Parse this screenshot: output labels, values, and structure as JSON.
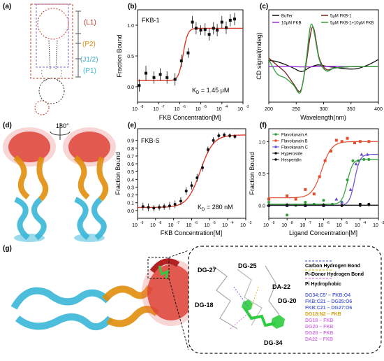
{
  "panels": {
    "a": {
      "letter": "(a)",
      "labels": [
        "(L1)",
        "(P2)",
        "(J1/2)",
        "(P1)"
      ],
      "colors": [
        "#c0392b",
        "#e08e0b",
        "#3aa7c7",
        "#3ab7d8"
      ]
    },
    "b": {
      "letter": "(b)",
      "title": "FKB-1",
      "kd": "K",
      "kd_sub": "D",
      "kd_val": " = 1.45 μM",
      "xlabel": "FKB Concentration[M]",
      "ylabel": "Fraction Bound",
      "xticks": [
        "10",
        "10",
        "10",
        "10",
        "10",
        "10"
      ],
      "xexp": [
        "-8",
        "-7",
        "-6",
        "-5",
        "-4",
        "-3"
      ],
      "yticks": [
        "0.0",
        "0.5",
        "1.0"
      ]
    },
    "c": {
      "letter": "(c)",
      "xlabel": "Wavelength(nm)",
      "ylabel": "CD signal(mdeg)",
      "xticks": [
        "200",
        "250",
        "300",
        "350",
        "400"
      ],
      "legend": [
        "Buffer",
        "10μM FKB",
        "5μM FKB-1",
        "5μM FKB-1+10μM FKB"
      ]
    },
    "d": {
      "letter": "(d)",
      "rotation": "180°"
    },
    "e": {
      "letter": "(e)",
      "title": "FKB-S",
      "kd": "K",
      "kd_sub": "D",
      "kd_val": " = 280 nM",
      "xlabel": "FKB Concentration[M]",
      "ylabel": "Fraction Bound",
      "xticks": [
        "10",
        "10",
        "10",
        "10",
        "10",
        "10",
        "10"
      ],
      "xexp": [
        "-9",
        "-8",
        "-7",
        "-6",
        "-5",
        "-4",
        "-3"
      ],
      "yticks": [
        "0.0",
        "0.1",
        "0.2",
        "0.3",
        "0.4",
        "0.5",
        "0.6",
        "0.7",
        "0.8",
        "0.9"
      ]
    },
    "f": {
      "letter": "(f)",
      "xlabel": "Ligand Concentration[M]",
      "ylabel": "Fraction Bound",
      "xticks": [
        "10",
        "10",
        "10",
        "10",
        "10",
        "10",
        "10"
      ],
      "xexp": [
        "-9",
        "-8",
        "-7",
        "-6",
        "-5",
        "-4",
        "-3"
      ],
      "yticks": [
        "0.0",
        "0.5",
        "1.0"
      ],
      "legend": [
        "Flavokavain A",
        "Flavokavain B",
        "Flavokavain C",
        "Hyperoside",
        "Hesperidin"
      ]
    },
    "g": {
      "letter": "(g)",
      "residues": [
        "DG-27",
        "DG-25",
        "DA-22",
        "DG-18",
        "DG-20",
        "DG-34"
      ],
      "legend": [
        "Carbon Hydrogen Bond",
        "Pi-Donor Hydrogen Bond",
        "Pi Hydrophobic"
      ],
      "interactions": [
        "DG34:C5' – FKB:O4",
        "FKB:C21 – DG25:O6",
        "FKB:C21 – DG27:O6",
        "DG18:N2 – FKB",
        "DG18 – FKB",
        "DG20 – FKB",
        "DG28 – FKB",
        "DA22 – FKB"
      ]
    }
  },
  "chart_data": [
    {
      "panel": "b",
      "type": "scatter",
      "title": "FKB-1",
      "xlabel": "FKB Concentration[M]",
      "ylabel": "Fraction Bound",
      "xscale": "log",
      "xlim": [
        1e-08,
        0.001
      ],
      "ylim": [
        -0.25,
        1.25
      ],
      "kd": "1.45 μM",
      "series": [
        {
          "x": [
            1.2e-08,
            2.5e-08,
            6e-08,
            1.2e-07,
            2.5e-07,
            6e-07,
            1.2e-06,
            2.5e-06,
            4e-06,
            6e-06,
            1e-05,
            1.6e-05,
            2.5e-05,
            4e-05,
            6e-05,
            0.0001,
            0.00016,
            0.00025,
            0.0004
          ],
          "y": [
            0.02,
            0.22,
            0.15,
            0.2,
            0.15,
            0.12,
            0.42,
            0.55,
            1.05,
            0.95,
            0.92,
            0.93,
            0.85,
            0.95,
            0.92,
            1.05,
            0.96,
            1.08,
            1.1
          ],
          "err": [
            0.1,
            0.12,
            0.1,
            0.1,
            0.1,
            0.1,
            0.1,
            0.08,
            0.1,
            0.1,
            0.08,
            0.1,
            0.1,
            0.1,
            0.1,
            0.1,
            0.1,
            0.1,
            0.1
          ]
        }
      ]
    },
    {
      "panel": "c",
      "type": "line",
      "xlabel": "Wavelength(nm)",
      "ylabel": "CD signal(mdeg)",
      "xlim": [
        200,
        400
      ],
      "series": [
        {
          "name": "Buffer",
          "color": "#111111",
          "x": [
            200,
            215,
            230,
            245,
            260,
            275,
            290,
            305,
            320,
            340,
            360,
            380,
            400
          ],
          "y": [
            0.45,
            0.35,
            0.15,
            -0.1,
            -0.35,
            -0.05,
            0.12,
            0.02,
            -0.05,
            -0.15,
            -0.15,
            0.1,
            0.5
          ]
        },
        {
          "name": "10μM FKB",
          "color": "#9b30d9",
          "x": [
            200,
            230,
            260,
            290,
            320,
            350,
            380,
            400
          ],
          "y": [
            0.0,
            0.02,
            -0.02,
            0.0,
            0.02,
            0.0,
            0.0,
            0.0
          ]
        },
        {
          "name": "5μM FKB-1",
          "color": "#7b1f1f",
          "x": [
            200,
            215,
            230,
            245,
            258,
            268,
            280,
            292,
            305,
            320,
            350,
            380,
            400
          ],
          "y": [
            0.6,
            0.1,
            -0.4,
            -1.2,
            -1.7,
            0.2,
            2.8,
            0.6,
            -0.2,
            -0.1,
            0.0,
            0.0,
            0.0
          ]
        },
        {
          "name": "5μM FKB-1+10μM FKB",
          "color": "#2e9e38",
          "x": [
            200,
            215,
            230,
            245,
            258,
            268,
            278,
            292,
            305,
            320,
            350,
            380,
            400
          ],
          "y": [
            0.5,
            -0.5,
            -0.8,
            -1.3,
            -1.8,
            0.4,
            3.0,
            0.5,
            -0.3,
            -0.1,
            0.0,
            0.0,
            0.0
          ]
        }
      ]
    },
    {
      "panel": "e",
      "type": "scatter",
      "title": "FKB-S",
      "xlabel": "FKB Concentration[M]",
      "ylabel": "Fraction Bound",
      "xscale": "log",
      "xlim": [
        1e-09,
        0.001
      ],
      "ylim": [
        -0.1,
        1.05
      ],
      "kd": "280 nM",
      "series": [
        {
          "x": [
            2e-09,
            4e-09,
            8e-09,
            1.6e-08,
            3e-08,
            6e-08,
            1.2e-07,
            2.5e-07,
            5e-07,
            1e-06,
            2e-06,
            4e-06,
            8e-06,
            1.6e-05,
            3.2e-05,
            6.4e-05,
            0.00013,
            0.00025
          ],
          "y": [
            0.05,
            0.04,
            0.03,
            0.04,
            0.05,
            0.06,
            0.08,
            0.12,
            0.25,
            0.32,
            0.42,
            0.55,
            0.78,
            0.9,
            0.96,
            0.97,
            0.96,
            0.95
          ],
          "err": [
            0.05,
            0.05,
            0.04,
            0.04,
            0.04,
            0.05,
            0.05,
            0.05,
            0.05,
            0.05,
            0.05,
            0.05,
            0.04,
            0.04,
            0.04,
            0.03,
            0.03,
            0.03
          ]
        }
      ]
    },
    {
      "panel": "f",
      "type": "scatter",
      "xlabel": "Ligand Concentration[M]",
      "ylabel": "Fraction Bound",
      "xscale": "log",
      "xlim": [
        1e-09,
        0.001
      ],
      "ylim": [
        -0.2,
        1.2
      ],
      "series": [
        {
          "name": "Flavokavain A",
          "color": "#2e9e38",
          "marker": "circle",
          "x": [
            1e-09,
            1e-08,
            3e-08,
            1e-07,
            3e-07,
            1e-06,
            3e-06,
            1e-05,
            2e-05,
            4e-05,
            8e-05,
            0.00016,
            0.0003
          ],
          "y": [
            0.05,
            -0.15,
            0.0,
            0.05,
            0.02,
            0.08,
            0.02,
            0.05,
            0.4,
            0.7,
            0.7,
            0.72,
            0.72
          ]
        },
        {
          "name": "Flavokavain B",
          "color": "#e05030",
          "marker": "square",
          "x": [
            1e-09,
            1e-08,
            3e-08,
            1e-07,
            3e-07,
            6e-07,
            1.2e-06,
            2.5e-06,
            5e-06,
            1e-05,
            2e-05,
            5e-05,
            0.0001,
            0.0003
          ],
          "y": [
            0.1,
            0.15,
            0.1,
            0.25,
            0.18,
            0.45,
            0.7,
            0.85,
            1.02,
            1.0,
            1.05,
            0.98,
            1.0,
            1.0
          ]
        },
        {
          "name": "Flavokavain C",
          "color": "#6a4ccf",
          "marker": "triangle",
          "x": [
            1e-09,
            1e-08,
            1e-07,
            1e-06,
            5e-06,
            1e-05,
            3e-05,
            6e-05,
            0.00012,
            0.00025
          ],
          "y": [
            0.0,
            0.0,
            0.0,
            0.0,
            0.1,
            0.05,
            0.25,
            0.65,
            0.8,
            0.8
          ]
        },
        {
          "name": "Hyperoside",
          "color": "#111111",
          "marker": "circle",
          "x": [
            1e-09,
            1e-08,
            1e-07,
            1e-06,
            1e-05,
            0.0001,
            0.0003
          ],
          "y": [
            0.0,
            0.0,
            0.0,
            0.0,
            0.0,
            0.02,
            0.02
          ]
        },
        {
          "name": "Hesperidin",
          "color": "#111111",
          "marker": "diamond",
          "x": [
            1e-09,
            1e-08,
            1e-07,
            1e-06,
            1e-05,
            0.0001,
            0.0003
          ],
          "y": [
            0.0,
            0.01,
            0.0,
            0.01,
            0.0,
            0.0,
            0.01
          ]
        }
      ]
    }
  ]
}
